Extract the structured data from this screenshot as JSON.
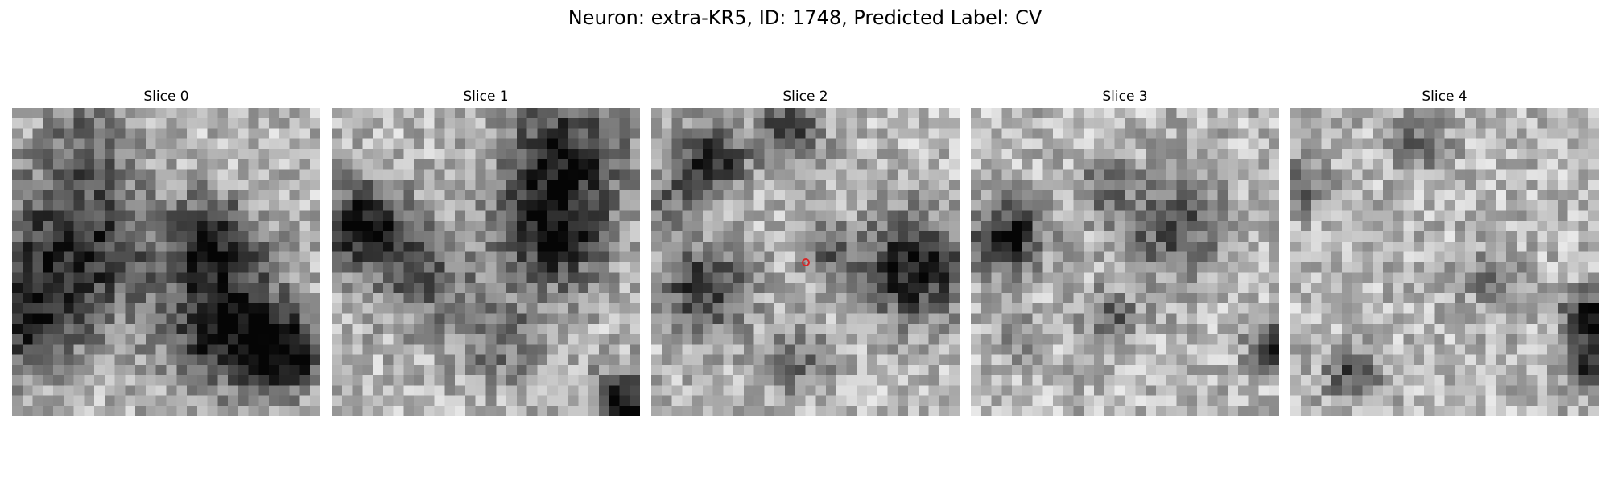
{
  "figure": {
    "title": "Neuron: extra-KR5, ID: 1748, Predicted Label: CV"
  },
  "slices": [
    {
      "title": "Slice 0",
      "seed": 11,
      "blobs": [
        [
          0.2,
          0.45,
          0.18,
          0.75
        ],
        [
          0.7,
          0.7,
          0.14,
          0.95
        ],
        [
          0.65,
          0.42,
          0.1,
          0.7
        ],
        [
          0.05,
          0.7,
          0.12,
          0.6
        ],
        [
          0.25,
          0.1,
          0.1,
          0.35
        ],
        [
          0.9,
          0.8,
          0.08,
          0.8
        ]
      ]
    },
    {
      "title": "Slice 1",
      "seed": 23,
      "blobs": [
        [
          0.1,
          0.38,
          0.1,
          0.85
        ],
        [
          0.75,
          0.15,
          0.14,
          0.75
        ],
        [
          0.72,
          0.42,
          0.12,
          0.8
        ],
        [
          0.3,
          0.55,
          0.12,
          0.45
        ],
        [
          0.95,
          0.95,
          0.07,
          0.9
        ],
        [
          0.55,
          0.75,
          0.1,
          0.4
        ]
      ]
    },
    {
      "title": "Slice 2",
      "seed": 37,
      "blobs": [
        [
          0.2,
          0.17,
          0.08,
          0.75
        ],
        [
          0.45,
          0.08,
          0.07,
          0.7
        ],
        [
          0.85,
          0.52,
          0.12,
          0.85
        ],
        [
          0.17,
          0.58,
          0.1,
          0.7
        ],
        [
          0.57,
          0.45,
          0.06,
          0.5
        ],
        [
          0.47,
          0.82,
          0.08,
          0.4
        ],
        [
          0.05,
          0.3,
          0.07,
          0.4
        ]
      ]
    },
    {
      "title": "Slice 3",
      "seed": 41,
      "blobs": [
        [
          0.12,
          0.42,
          0.08,
          0.9
        ],
        [
          0.65,
          0.38,
          0.12,
          0.55
        ],
        [
          0.45,
          0.68,
          0.06,
          0.5
        ],
        [
          0.43,
          0.25,
          0.06,
          0.4
        ],
        [
          0.98,
          0.78,
          0.05,
          0.95
        ],
        [
          0.15,
          0.75,
          0.06,
          0.3
        ]
      ]
    },
    {
      "title": "Slice 4",
      "seed": 53,
      "blobs": [
        [
          0.97,
          0.68,
          0.06,
          0.9
        ],
        [
          0.97,
          0.85,
          0.05,
          0.75
        ],
        [
          0.2,
          0.86,
          0.06,
          0.6
        ],
        [
          0.02,
          0.25,
          0.06,
          0.5
        ],
        [
          0.42,
          0.12,
          0.06,
          0.5
        ],
        [
          0.65,
          0.55,
          0.07,
          0.35
        ]
      ]
    }
  ],
  "marker": {
    "slice": 2,
    "x": 0.5,
    "y": 0.5,
    "color": "#d62728"
  }
}
